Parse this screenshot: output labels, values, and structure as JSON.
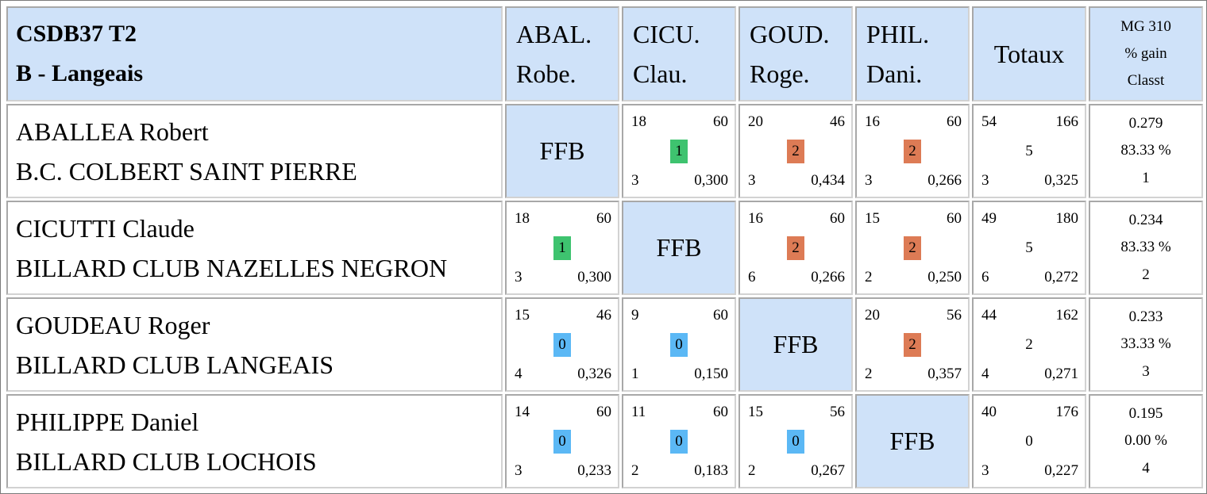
{
  "colors": {
    "header_bg": "#cfe2f9",
    "win": "#3ec36f",
    "draw": "#dd7b55",
    "loss": "#5bb8f5"
  },
  "header": {
    "title_line1": "CSDB37 T2",
    "title_line2": "B - Langeais",
    "columns": [
      {
        "line1": "ABAL.",
        "line2": "Robe."
      },
      {
        "line1": "CICU.",
        "line2": "Clau."
      },
      {
        "line1": "GOUD.",
        "line2": "Roge."
      },
      {
        "line1": "PHIL.",
        "line2": "Dani."
      }
    ],
    "totals_label": "Totaux",
    "mg_line1": "MG 310",
    "mg_line2": "% gain",
    "mg_line3": "Classt"
  },
  "ffb_label": "FFB",
  "rows": [
    {
      "name": "ABALLEA Robert",
      "club": "B.C. COLBERT SAINT PIERRE",
      "matches": [
        null,
        {
          "points": "18",
          "reprises": "60",
          "result": "1",
          "serie": "3",
          "avg": "0,300",
          "outcome": "win"
        },
        {
          "points": "20",
          "reprises": "46",
          "result": "2",
          "serie": "3",
          "avg": "0,434",
          "outcome": "draw"
        },
        {
          "points": "16",
          "reprises": "60",
          "result": "2",
          "serie": "3",
          "avg": "0,266",
          "outcome": "draw"
        }
      ],
      "totals": {
        "points": "54",
        "reprises": "166",
        "result": "5",
        "serie": "3",
        "avg": "0,325"
      },
      "mg": {
        "moyenne": "0.279",
        "pct": "83.33 %",
        "rank": "1"
      }
    },
    {
      "name": "CICUTTI Claude",
      "club": "BILLARD CLUB NAZELLES NEGRON",
      "matches": [
        {
          "points": "18",
          "reprises": "60",
          "result": "1",
          "serie": "3",
          "avg": "0,300",
          "outcome": "win"
        },
        null,
        {
          "points": "16",
          "reprises": "60",
          "result": "2",
          "serie": "6",
          "avg": "0,266",
          "outcome": "draw"
        },
        {
          "points": "15",
          "reprises": "60",
          "result": "2",
          "serie": "2",
          "avg": "0,250",
          "outcome": "draw"
        }
      ],
      "totals": {
        "points": "49",
        "reprises": "180",
        "result": "5",
        "serie": "6",
        "avg": "0,272"
      },
      "mg": {
        "moyenne": "0.234",
        "pct": "83.33 %",
        "rank": "2"
      }
    },
    {
      "name": "GOUDEAU Roger",
      "club": "BILLARD CLUB LANGEAIS",
      "matches": [
        {
          "points": "15",
          "reprises": "46",
          "result": "0",
          "serie": "4",
          "avg": "0,326",
          "outcome": "loss"
        },
        {
          "points": "9",
          "reprises": "60",
          "result": "0",
          "serie": "1",
          "avg": "0,150",
          "outcome": "loss"
        },
        null,
        {
          "points": "20",
          "reprises": "56",
          "result": "2",
          "serie": "2",
          "avg": "0,357",
          "outcome": "draw"
        }
      ],
      "totals": {
        "points": "44",
        "reprises": "162",
        "result": "2",
        "serie": "4",
        "avg": "0,271"
      },
      "mg": {
        "moyenne": "0.233",
        "pct": "33.33 %",
        "rank": "3"
      }
    },
    {
      "name": "PHILIPPE Daniel",
      "club": "BILLARD CLUB LOCHOIS",
      "matches": [
        {
          "points": "14",
          "reprises": "60",
          "result": "0",
          "serie": "3",
          "avg": "0,233",
          "outcome": "loss"
        },
        {
          "points": "11",
          "reprises": "60",
          "result": "0",
          "serie": "2",
          "avg": "0,183",
          "outcome": "loss"
        },
        {
          "points": "15",
          "reprises": "56",
          "result": "0",
          "serie": "2",
          "avg": "0,267",
          "outcome": "loss"
        },
        null
      ],
      "totals": {
        "points": "40",
        "reprises": "176",
        "result": "0",
        "serie": "3",
        "avg": "0,227"
      },
      "mg": {
        "moyenne": "0.195",
        "pct": "0.00 %",
        "rank": "4"
      }
    }
  ]
}
